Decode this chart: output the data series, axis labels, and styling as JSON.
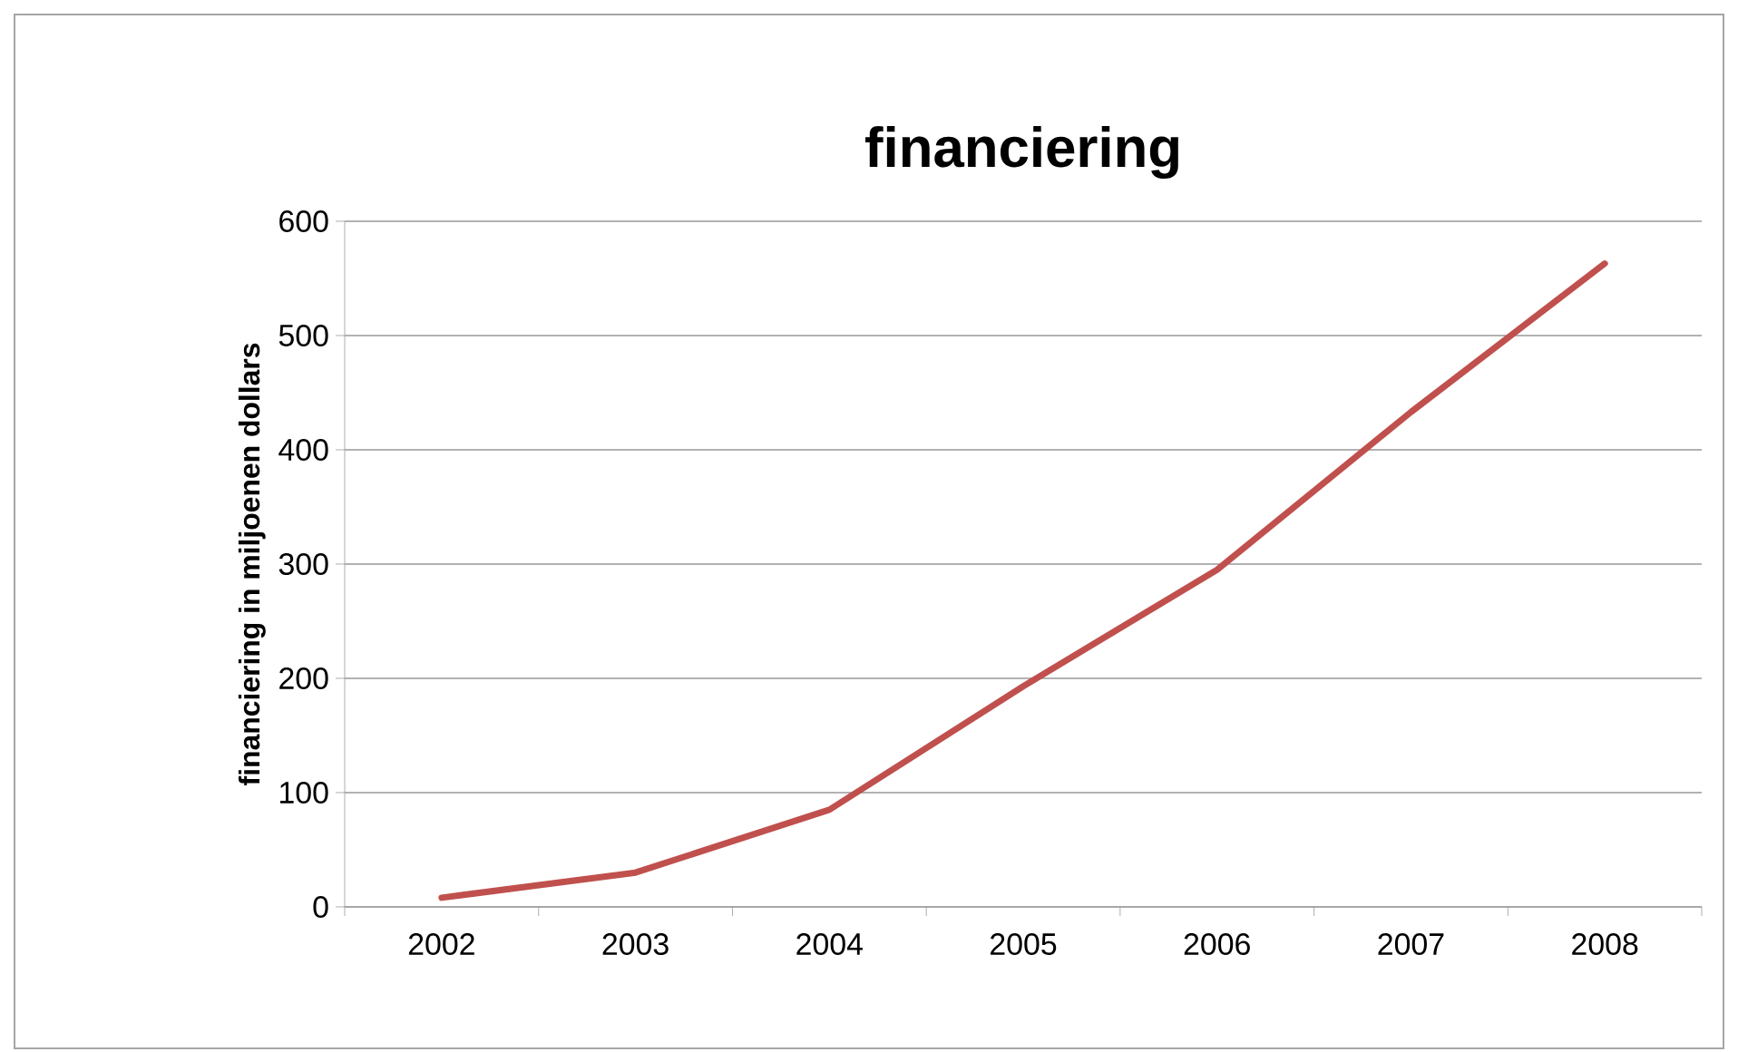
{
  "chart_data": {
    "type": "line",
    "title": "financiering",
    "ylabel": "financiering in miljoenen dollars",
    "categories": [
      "2002",
      "2003",
      "2004",
      "2005",
      "2006",
      "2007",
      "2008"
    ],
    "series": [
      {
        "color": "#c0504d",
        "values": [
          8,
          30,
          85,
          193,
          295,
          433,
          563
        ]
      }
    ],
    "ylim": [
      0,
      600
    ],
    "yticks": [
      0,
      100,
      200,
      300,
      400,
      500,
      600
    ],
    "grid": "y"
  }
}
